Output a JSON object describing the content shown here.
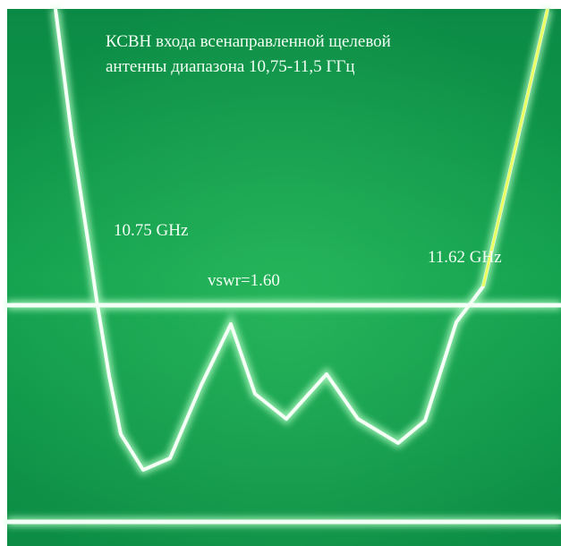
{
  "title": {
    "lines": [
      "КСВН входа всенаправленной щелевой",
      "антенны диапазона 10,75-11,5 ГГц"
    ]
  },
  "annotations": [
    {
      "label": "10.75 GHz"
    },
    {
      "label": "vswr=1.60"
    },
    {
      "label": "11.62 GHz"
    }
  ]
}
